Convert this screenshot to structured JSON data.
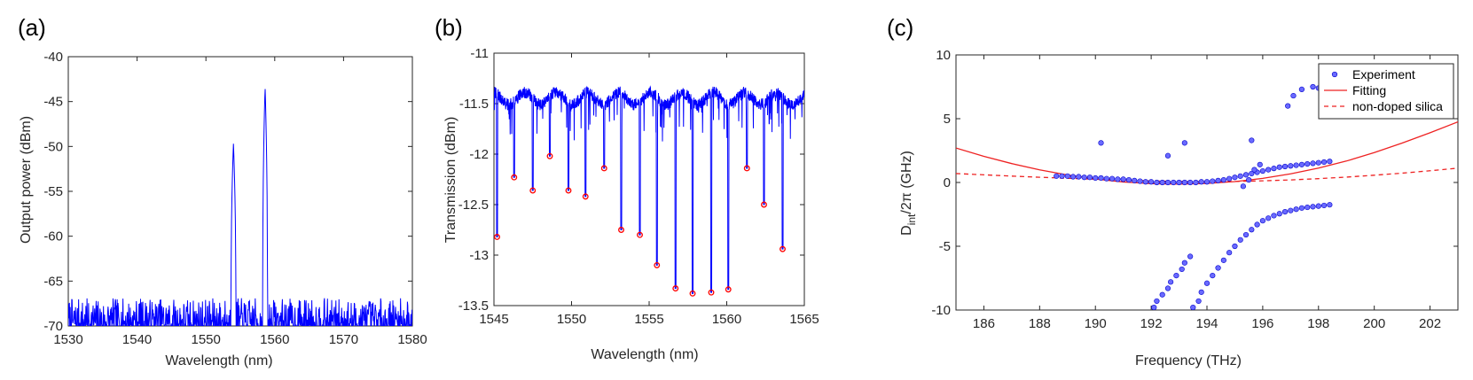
{
  "chart_data": [
    {
      "type": "line",
      "panel_label": "(a)",
      "xlabel": "Wavelength (nm)",
      "ylabel": "Output power (dBm)",
      "xlim": [
        1530,
        1580
      ],
      "ylim": [
        -70,
        -40
      ],
      "xticks": [
        1530,
        1540,
        1550,
        1560,
        1570,
        1580
      ],
      "yticks": [
        -40,
        -45,
        -50,
        -55,
        -60,
        -65,
        -70
      ],
      "grid": false,
      "series": [
        {
          "color": "#0000ff",
          "noise_floor_dbm": [
            -70,
            -67
          ],
          "peaks": [
            {
              "x": 1554.0,
              "y": -49.7
            },
            {
              "x": 1558.6,
              "y": -43.3
            }
          ]
        }
      ]
    },
    {
      "type": "line",
      "panel_label": "(b)",
      "xlabel": "Wavelength (nm)",
      "ylabel": "Transmission (dBm)",
      "xlim": [
        1545,
        1565
      ],
      "ylim": [
        -13.5,
        -11
      ],
      "xticks": [
        1545,
        1550,
        1555,
        1560,
        1565
      ],
      "yticks": [
        -11,
        -11.5,
        -12,
        -12.5,
        -13,
        -13.5
      ],
      "grid": false,
      "baseline_dbm": -11.45,
      "series": [
        {
          "kind": "line",
          "color": "#0000ff",
          "dips": [
            {
              "x": 1545.2,
              "y": -12.82
            },
            {
              "x": 1546.3,
              "y": -12.23
            },
            {
              "x": 1547.5,
              "y": -12.36
            },
            {
              "x": 1548.6,
              "y": -12.02
            },
            {
              "x": 1549.8,
              "y": -12.36
            },
            {
              "x": 1550.9,
              "y": -12.42
            },
            {
              "x": 1552.1,
              "y": -12.14
            },
            {
              "x": 1553.2,
              "y": -12.75
            },
            {
              "x": 1554.4,
              "y": -12.8
            },
            {
              "x": 1555.5,
              "y": -13.1
            },
            {
              "x": 1556.7,
              "y": -13.33
            },
            {
              "x": 1557.8,
              "y": -13.38
            },
            {
              "x": 1559.0,
              "y": -13.37
            },
            {
              "x": 1560.1,
              "y": -13.34
            },
            {
              "x": 1561.3,
              "y": -12.14
            },
            {
              "x": 1562.4,
              "y": -12.5
            },
            {
              "x": 1563.6,
              "y": -12.94
            }
          ]
        },
        {
          "kind": "markers",
          "color": "#ff0000",
          "x": [
            1545.2,
            1546.3,
            1547.5,
            1548.6,
            1549.8,
            1550.9,
            1552.1,
            1553.2,
            1554.4,
            1555.5,
            1556.7,
            1557.8,
            1559.0,
            1560.1,
            1561.3,
            1562.4,
            1563.6
          ],
          "y": [
            -12.82,
            -12.23,
            -12.36,
            -12.02,
            -12.36,
            -12.42,
            -12.14,
            -12.75,
            -12.8,
            -13.1,
            -13.33,
            -13.38,
            -13.37,
            -13.34,
            -12.14,
            -12.5,
            -12.94
          ]
        }
      ]
    },
    {
      "type": "scatter",
      "panel_label": "(c)",
      "xlabel": "Frequency (THz)",
      "ylabel_parts": {
        "main": "D",
        "sub": "int",
        "rest": "/2π (GHz)"
      },
      "xlim": [
        185,
        203
      ],
      "ylim": [
        -10,
        10
      ],
      "xticks": [
        186,
        188,
        190,
        192,
        194,
        196,
        198,
        200,
        202
      ],
      "yticks": [
        10,
        5,
        0,
        -5,
        -10
      ],
      "grid": false,
      "legend_position": "top-right",
      "series": [
        {
          "name": "Experiment",
          "kind": "markers",
          "color": "#6a6aff",
          "edge_color": "#0000cc",
          "x": [
            188.6,
            188.8,
            189.0,
            189.2,
            189.4,
            189.6,
            189.8,
            190.0,
            190.2,
            190.4,
            190.6,
            190.8,
            191.0,
            191.2,
            191.4,
            191.6,
            191.8,
            192.0,
            192.2,
            192.4,
            192.6,
            192.8,
            193.0,
            193.2,
            193.4,
            193.6,
            193.8,
            194.0,
            194.2,
            194.4,
            194.6,
            194.8,
            195.0,
            195.2,
            195.4,
            195.6,
            195.8,
            196.0,
            196.2,
            196.4,
            196.6,
            196.8,
            197.0,
            197.2,
            197.4,
            197.6,
            197.8,
            198.0,
            198.2,
            198.4,
            190.2,
            192.6,
            193.2,
            195.6,
            196.9,
            197.1,
            197.4,
            197.8,
            198.0,
            195.3,
            195.5,
            195.7,
            195.9,
            192.1,
            192.2,
            192.4,
            192.6,
            192.7,
            192.9,
            193.1,
            193.2,
            193.4,
            193.5,
            193.7,
            193.8,
            194.0,
            194.2,
            194.4,
            194.6,
            194.8,
            195.0,
            195.2,
            195.4,
            195.6,
            195.8,
            196.0,
            196.2,
            196.4,
            196.6,
            196.8,
            197.0,
            197.2,
            197.4,
            197.6,
            197.8,
            198.0,
            198.2,
            198.4
          ],
          "y": [
            0.5,
            0.5,
            0.5,
            0.45,
            0.45,
            0.4,
            0.4,
            0.35,
            0.35,
            0.3,
            0.3,
            0.25,
            0.25,
            0.2,
            0.15,
            0.1,
            0.05,
            0.05,
            0.0,
            0.0,
            0.0,
            0.0,
            0.0,
            0.0,
            0.0,
            0.0,
            0.05,
            0.05,
            0.1,
            0.15,
            0.2,
            0.3,
            0.4,
            0.5,
            0.6,
            0.7,
            0.8,
            0.9,
            1.0,
            1.1,
            1.2,
            1.25,
            1.3,
            1.35,
            1.4,
            1.45,
            1.5,
            1.55,
            1.6,
            1.65,
            3.1,
            2.1,
            3.1,
            3.3,
            6.0,
            6.8,
            7.3,
            7.5,
            7.4,
            -0.3,
            0.2,
            1.0,
            1.4,
            -9.8,
            -9.3,
            -8.8,
            -8.3,
            -7.8,
            -7.3,
            -6.8,
            -6.3,
            -5.8,
            -9.8,
            -9.3,
            -8.6,
            -7.9,
            -7.3,
            -6.7,
            -6.1,
            -5.5,
            -5.0,
            -4.5,
            -4.1,
            -3.7,
            -3.3,
            -3.0,
            -2.8,
            -2.6,
            -2.45,
            -2.3,
            -2.2,
            -2.1,
            -2.0,
            -1.95,
            -1.9,
            -1.85,
            -1.8,
            -1.75
          ]
        },
        {
          "name": "Fitting",
          "kind": "line",
          "style": "solid",
          "color": "#ee2222",
          "x": [
            185,
            186,
            187,
            188,
            189,
            190,
            191,
            192,
            193,
            194,
            195,
            196,
            197,
            198,
            199,
            200,
            201,
            202,
            203
          ],
          "y": [
            2.7,
            2.05,
            1.48,
            0.99,
            0.59,
            0.27,
            0.04,
            -0.09,
            -0.13,
            -0.08,
            0.07,
            0.32,
            0.68,
            1.13,
            1.68,
            2.34,
            3.09,
            3.9,
            4.75
          ]
        },
        {
          "name": "non-doped silica",
          "kind": "line",
          "style": "dashed",
          "color": "#ee2222",
          "x": [
            185,
            186,
            187,
            188,
            189,
            190,
            191,
            192,
            193,
            194,
            195,
            196,
            197,
            198,
            199,
            200,
            201,
            202,
            203
          ],
          "y": [
            0.7,
            0.6,
            0.5,
            0.41,
            0.33,
            0.25,
            0.18,
            0.12,
            0.08,
            0.06,
            0.08,
            0.13,
            0.2,
            0.3,
            0.42,
            0.57,
            0.73,
            0.92,
            1.12
          ]
        }
      ]
    }
  ]
}
